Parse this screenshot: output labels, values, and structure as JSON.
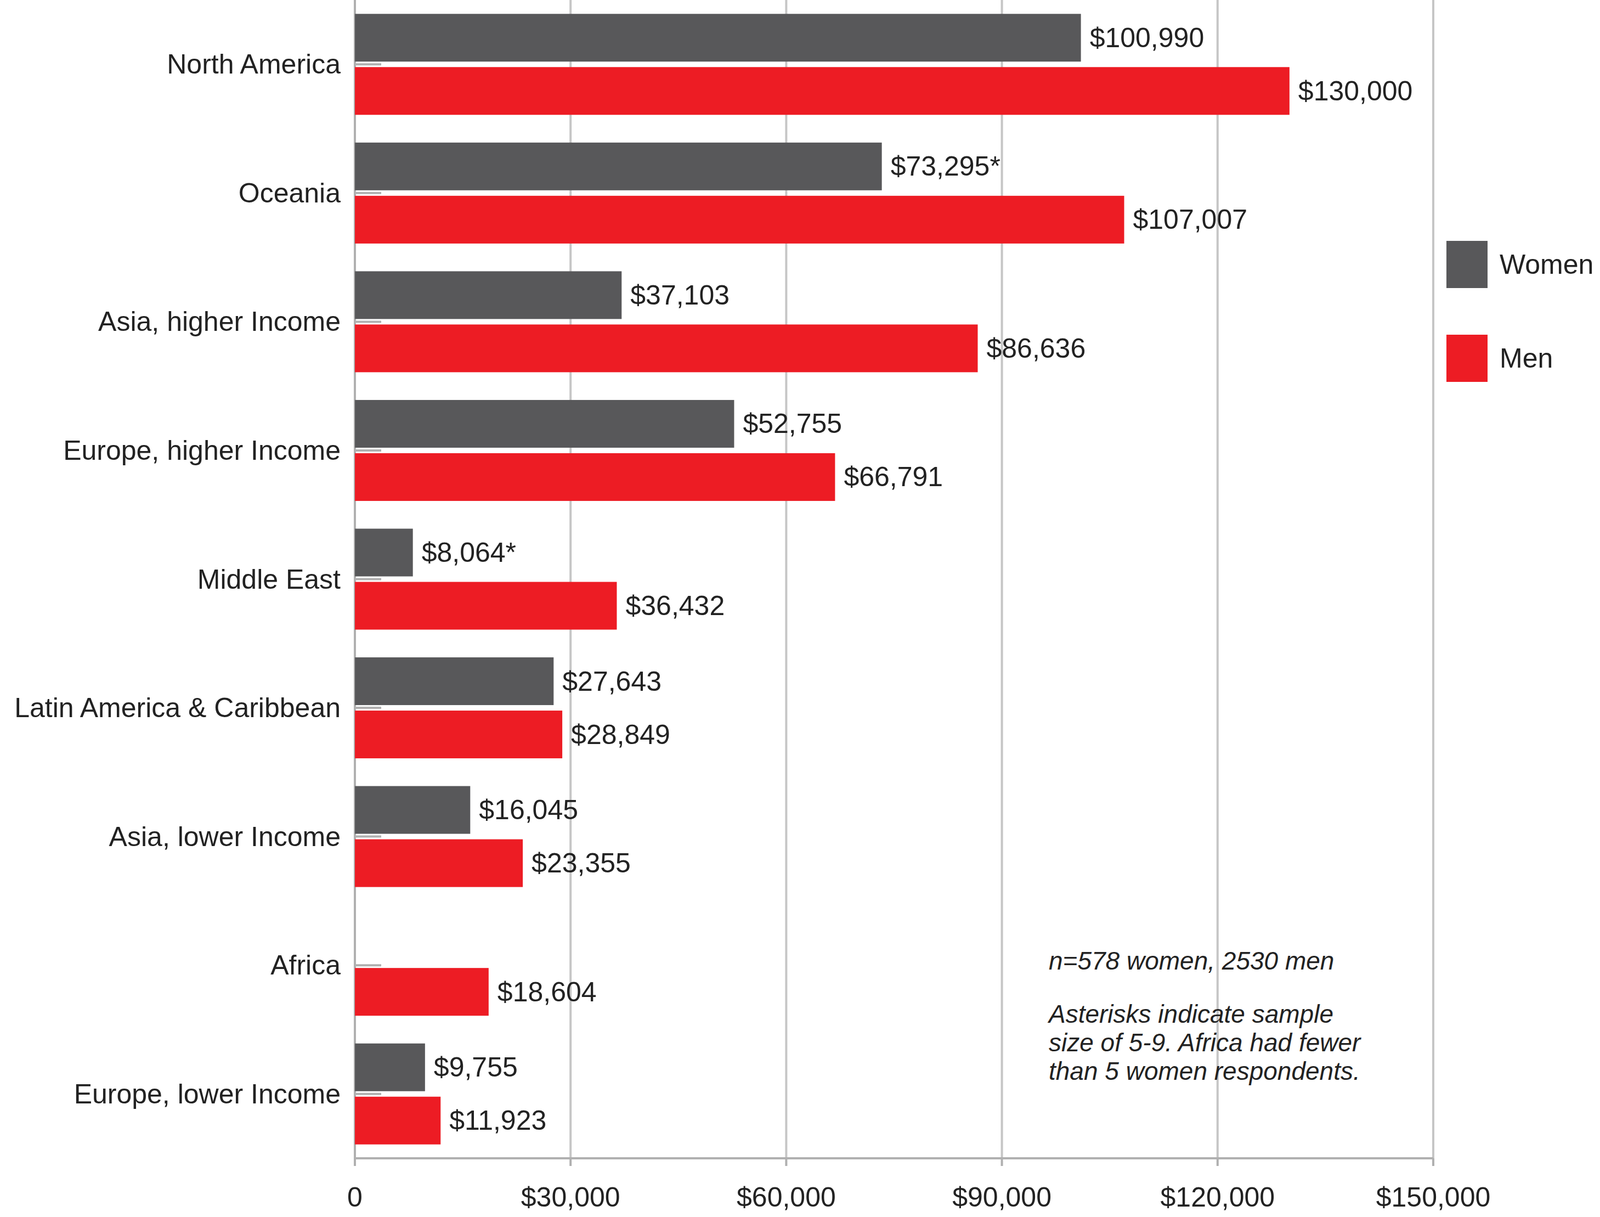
{
  "chart_data": {
    "type": "bar",
    "orientation": "horizontal",
    "categories": [
      "North America",
      "Oceania",
      "Asia, higher Income",
      "Europe, higher Income",
      "Middle East",
      "Latin America & Caribbean",
      "Asia, lower Income",
      "Africa",
      "Europe, lower Income"
    ],
    "series": [
      {
        "name": "Women",
        "color": "#58585a",
        "values": [
          100990,
          73295,
          37103,
          52755,
          8064,
          27643,
          16045,
          null,
          9755
        ],
        "value_labels": [
          "$100,990",
          "$73,295*",
          "$37,103",
          "$52,755",
          "$8,064*",
          "$27,643",
          "$16,045",
          null,
          "$9,755"
        ]
      },
      {
        "name": "Men",
        "color": "#ed1c24",
        "values": [
          130000,
          107007,
          86636,
          66791,
          36432,
          28849,
          23355,
          18604,
          11923
        ],
        "value_labels": [
          "$130,000",
          "$107,007",
          "$86,636",
          "$66,791",
          "$36,432",
          "$28,849",
          "$23,355",
          "$18,604",
          "$11,923"
        ]
      }
    ],
    "xlim": [
      0,
      150000
    ],
    "xticks": [
      0,
      {
        "value": 30000,
        "label": "$30,000"
      },
      {
        "value": 60000,
        "label": "$60,000"
      },
      {
        "value": 90000,
        "label": "$90,000"
      },
      {
        "value": 120000,
        "label": "$120,000"
      },
      {
        "value": 150000,
        "label": "$150,000"
      }
    ],
    "grid": true,
    "data_labels": true,
    "legend": "right",
    "annotations": [
      "n=578 women, 2530 men",
      "Asterisks indicate sample size of 5-9. Africa had fewer than 5 women respondents."
    ]
  }
}
